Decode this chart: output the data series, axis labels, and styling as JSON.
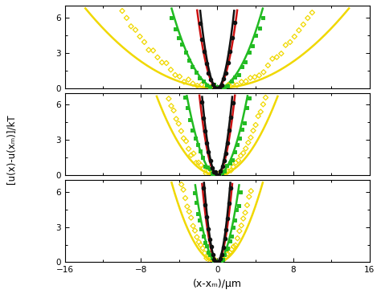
{
  "title": "",
  "xlabel": "(x-xₘ)/μm",
  "ylabel": "[u(x)-u(xₘ)]/kT",
  "xlim": [
    -16,
    16
  ],
  "ylim": [
    0,
    7
  ],
  "yticks": [
    0,
    3,
    6
  ],
  "xticks": [
    -16,
    -8,
    0,
    8,
    16
  ],
  "n_panels": 3,
  "background": "#ffffff",
  "panel_configs": [
    {
      "yellow_scatter_spread": 9.5,
      "green_scatter_spread": 4.8,
      "black_scatter_spread": 1.9,
      "red_curve_spread": 2.0,
      "green_curve_spread": 4.5,
      "yellow_curve_spread": 13.0,
      "black_curve_spread": 1.7,
      "yellow_xrange": 16,
      "green_xrange": 10,
      "black_xrange": 5
    },
    {
      "yellow_scatter_spread": 4.8,
      "green_scatter_spread": 3.2,
      "black_scatter_spread": 1.6,
      "red_curve_spread": 1.75,
      "green_curve_spread": 3.0,
      "yellow_curve_spread": 6.0,
      "black_curve_spread": 1.5,
      "yellow_xrange": 9,
      "green_xrange": 7,
      "black_xrange": 4
    },
    {
      "yellow_scatter_spread": 3.5,
      "green_scatter_spread": 2.4,
      "black_scatter_spread": 1.4,
      "red_curve_spread": 1.5,
      "green_curve_spread": 2.2,
      "yellow_curve_spread": 4.5,
      "black_curve_spread": 1.3,
      "yellow_xrange": 7,
      "green_xrange": 5,
      "black_xrange": 3.5
    }
  ],
  "colors": {
    "yellow": "#f0d800",
    "green": "#22bb22",
    "red": "#cc1111",
    "black": "#111111"
  }
}
